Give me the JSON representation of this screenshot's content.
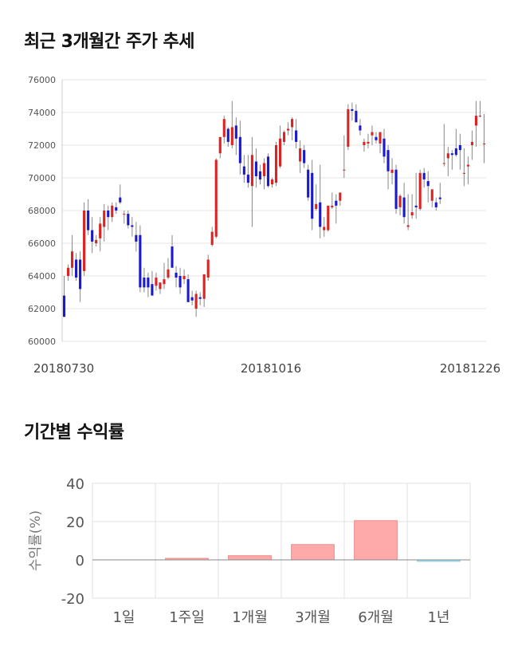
{
  "titles": {
    "price_chart": "최근 3개월간 주가 추세",
    "return_chart": "기간별 수익률"
  },
  "chart_data": [
    {
      "type": "candlestick",
      "ylim": [
        60000,
        76000
      ],
      "yticks": [
        "60000",
        "62000",
        "64000",
        "66000",
        "68000",
        "70000",
        "72000",
        "74000",
        "76000"
      ],
      "xticks": [
        "20180730",
        "20181016",
        "20181226"
      ],
      "colors": {
        "up": "#dd2222",
        "down": "#1a1acc",
        "wick": "#888888",
        "grid": "#e6e6e6"
      },
      "ohlc": [
        [
          62800,
          64000,
          61500,
          61500
        ],
        [
          64000,
          64700,
          63700,
          64500
        ],
        [
          64500,
          66500,
          64000,
          65500
        ],
        [
          65000,
          65400,
          63700,
          63900
        ],
        [
          65000,
          65500,
          62400,
          63200
        ],
        [
          64300,
          68500,
          64000,
          68000
        ],
        [
          68000,
          68700,
          66500,
          66800
        ],
        [
          66800,
          67600,
          65400,
          66100
        ],
        [
          66000,
          66500,
          65800,
          66200
        ],
        [
          66300,
          67600,
          65500,
          67200
        ],
        [
          67000,
          68400,
          66100,
          68000
        ],
        [
          68000,
          68300,
          66800,
          67600
        ],
        [
          67600,
          68500,
          67300,
          68300
        ],
        [
          68200,
          68500,
          67800,
          68000
        ],
        [
          68800,
          69600,
          68400,
          68500
        ],
        [
          67800,
          68000,
          67200,
          67800
        ],
        [
          67800,
          68000,
          66900,
          67100
        ],
        [
          67100,
          67600,
          66400,
          67000
        ],
        [
          66500,
          67300,
          65500,
          66100
        ],
        [
          66500,
          67100,
          63000,
          63300
        ],
        [
          63900,
          64500,
          63000,
          63300
        ],
        [
          63900,
          64200,
          62700,
          63300
        ],
        [
          63500,
          64300,
          62800,
          62800
        ],
        [
          63400,
          64200,
          63100,
          63900
        ],
        [
          63200,
          63600,
          62900,
          63600
        ],
        [
          63500,
          64800,
          63200,
          63800
        ],
        [
          63900,
          65100,
          63800,
          64400
        ],
        [
          65800,
          66500,
          64600,
          64500
        ],
        [
          64200,
          64600,
          63300,
          63900
        ],
        [
          64000,
          64500,
          62900,
          63300
        ],
        [
          63800,
          64400,
          63500,
          64000
        ],
        [
          63800,
          64100,
          62400,
          62400
        ],
        [
          62700,
          63100,
          62200,
          62500
        ],
        [
          62000,
          63100,
          61500,
          62900
        ],
        [
          62700,
          63000,
          62200,
          62600
        ],
        [
          62600,
          64100,
          62100,
          64100
        ],
        [
          63900,
          65300,
          63700,
          65000
        ],
        [
          65900,
          67000,
          65800,
          66700
        ],
        [
          66400,
          71200,
          66300,
          71100
        ],
        [
          71500,
          72400,
          71200,
          72500
        ],
        [
          72500,
          73800,
          72100,
          73600
        ],
        [
          73000,
          73100,
          71900,
          72200
        ],
        [
          72000,
          74700,
          71800,
          73100
        ],
        [
          73200,
          73700,
          71400,
          72400
        ],
        [
          72500,
          73500,
          70200,
          70900
        ],
        [
          70700,
          71400,
          69700,
          70200
        ],
        [
          70200,
          71400,
          69400,
          69700
        ],
        [
          69500,
          72500,
          67000,
          71400
        ],
        [
          71000,
          71800,
          69400,
          70100
        ],
        [
          70400,
          70800,
          69600,
          69900
        ],
        [
          70100,
          71200,
          69300,
          70900
        ],
        [
          71300,
          71500,
          69400,
          69500
        ],
        [
          69600,
          70000,
          69400,
          69900
        ],
        [
          69700,
          72200,
          69500,
          72000
        ],
        [
          70700,
          73200,
          70600,
          72400
        ],
        [
          72200,
          72900,
          72000,
          72800
        ],
        [
          72900,
          73400,
          72600,
          73000
        ],
        [
          73100,
          73700,
          72300,
          73600
        ],
        [
          72900,
          73600,
          71800,
          72200
        ],
        [
          71000,
          72300,
          70300,
          71800
        ],
        [
          71700,
          72000,
          70600,
          70900
        ],
        [
          70500,
          70800,
          68600,
          68800
        ],
        [
          70300,
          71100,
          66800,
          67500
        ],
        [
          68100,
          69600,
          68000,
          68400
        ],
        [
          68500,
          70800,
          66300,
          67000
        ],
        [
          66800,
          67600,
          66400,
          67000
        ],
        [
          66800,
          68300,
          66700,
          68300
        ],
        [
          68200,
          69100,
          68100,
          68300
        ],
        [
          68600,
          69000,
          67200,
          68300
        ],
        [
          68600,
          69100,
          68300,
          69100
        ],
        [
          70500,
          72600,
          70000,
          70500
        ],
        [
          71900,
          74500,
          71700,
          74200
        ],
        [
          74200,
          74600,
          73500,
          74100
        ],
        [
          74100,
          74500,
          73400,
          73400
        ],
        [
          73200,
          73600,
          72600,
          72900
        ],
        [
          72000,
          72400,
          71600,
          72200
        ],
        [
          72100,
          72700,
          71800,
          72200
        ],
        [
          72600,
          73200,
          72000,
          72800
        ],
        [
          72500,
          72800,
          72100,
          72300
        ],
        [
          72100,
          72700,
          71500,
          72800
        ],
        [
          72400,
          73000,
          70900,
          71300
        ],
        [
          71700,
          72000,
          69300,
          70400
        ],
        [
          70300,
          71200,
          69600,
          70500
        ],
        [
          70500,
          70800,
          67800,
          68100
        ],
        [
          68200,
          69000,
          67700,
          68900
        ],
        [
          68800,
          69700,
          67200,
          67600
        ],
        [
          67000,
          69000,
          66800,
          67100
        ],
        [
          67700,
          69000,
          67500,
          67900
        ],
        [
          68300,
          70300,
          67500,
          68200
        ],
        [
          68100,
          70500,
          68000,
          70300
        ],
        [
          70300,
          70600,
          69400,
          69900
        ],
        [
          69800,
          70400,
          68500,
          69500
        ],
        [
          68600,
          69200,
          68200,
          69300
        ],
        [
          68500,
          68800,
          68000,
          68200
        ],
        [
          68800,
          69700,
          68400,
          68700
        ],
        [
          70900,
          73300,
          70700,
          70900
        ],
        [
          71200,
          71900,
          70100,
          71500
        ],
        [
          71500,
          71700,
          70500,
          71400
        ],
        [
          71800,
          73000,
          71300,
          71400
        ],
        [
          72000,
          72700,
          70500,
          71700
        ],
        [
          70300,
          71800,
          69500,
          70300
        ],
        [
          70700,
          71300,
          69600,
          70800
        ],
        [
          72000,
          72900,
          71100,
          72200
        ],
        [
          73200,
          74700,
          71900,
          73800
        ],
        [
          73800,
          74700,
          73700,
          73800
        ],
        [
          72100,
          73900,
          70900,
          72100
        ]
      ]
    },
    {
      "type": "bar",
      "ylabel": "수익률(%)",
      "ylim": [
        -20,
        40
      ],
      "yticks": [
        "40",
        "20",
        "0",
        "-20"
      ],
      "categories": [
        "1일",
        "1주일",
        "1개월",
        "3개월",
        "6개월",
        "1년"
      ],
      "values": [
        0,
        0.8,
        2.2,
        8.0,
        20.5,
        -0.8
      ],
      "colors": {
        "positive": "#ffaaaa",
        "negative": "#a6e0f2",
        "zero_line": "#888888",
        "grid": "#e0e0e0"
      }
    }
  ]
}
